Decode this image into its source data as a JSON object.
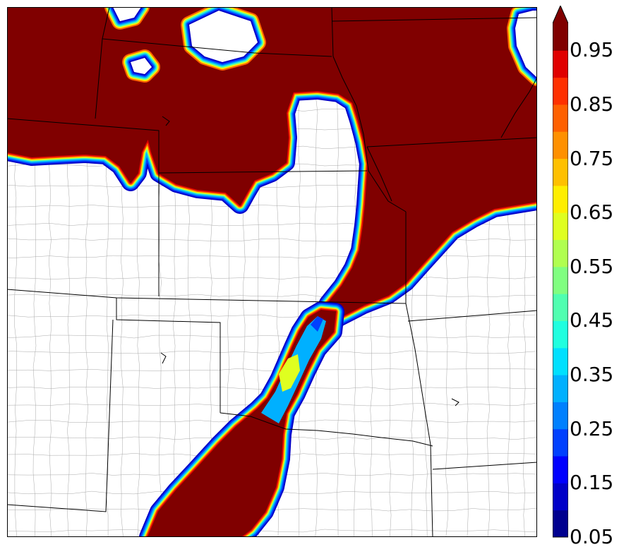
{
  "map": {
    "colors": {
      "high": "#800000",
      "border_state": "#000000",
      "border_county": "#9a9a9a",
      "background": "#ffffff"
    }
  },
  "colorbar": {
    "ticks": [
      "0.05",
      "0.15",
      "0.25",
      "0.35",
      "0.45",
      "0.55",
      "0.65",
      "0.75",
      "0.85",
      "0.95"
    ],
    "bands": [
      {
        "from": 0.05,
        "to": 0.1,
        "color": "#00008f"
      },
      {
        "from": 0.1,
        "to": 0.15,
        "color": "#0000c8"
      },
      {
        "from": 0.15,
        "to": 0.2,
        "color": "#0000ff"
      },
      {
        "from": 0.2,
        "to": 0.25,
        "color": "#0040ff"
      },
      {
        "from": 0.25,
        "to": 0.3,
        "color": "#0080ff"
      },
      {
        "from": 0.3,
        "to": 0.35,
        "color": "#00b0ff"
      },
      {
        "from": 0.35,
        "to": 0.4,
        "color": "#00e0ff"
      },
      {
        "from": 0.4,
        "to": 0.45,
        "color": "#20ffdf"
      },
      {
        "from": 0.45,
        "to": 0.5,
        "color": "#50ffb0"
      },
      {
        "from": 0.5,
        "to": 0.55,
        "color": "#80ff80"
      },
      {
        "from": 0.55,
        "to": 0.6,
        "color": "#b0ff50"
      },
      {
        "from": 0.6,
        "to": 0.65,
        "color": "#dfff20"
      },
      {
        "from": 0.65,
        "to": 0.7,
        "color": "#ffee00"
      },
      {
        "from": 0.7,
        "to": 0.75,
        "color": "#ffc000"
      },
      {
        "from": 0.75,
        "to": 0.8,
        "color": "#ff9000"
      },
      {
        "from": 0.8,
        "to": 0.85,
        "color": "#ff6000"
      },
      {
        "from": 0.85,
        "to": 0.9,
        "color": "#ff3000"
      },
      {
        "from": 0.9,
        "to": 0.95,
        "color": "#e00000"
      },
      {
        "from": 0.95,
        "to": 1.0,
        "color": "#800000"
      }
    ],
    "extend": "max"
  }
}
